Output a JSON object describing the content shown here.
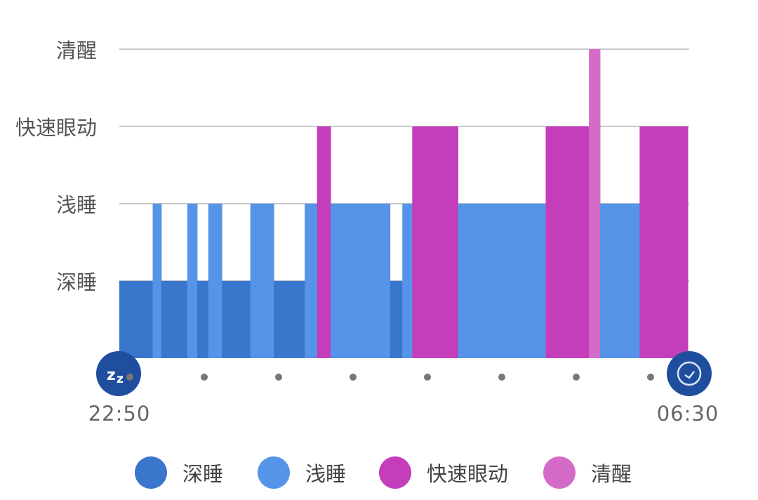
{
  "chart_data": {
    "type": "bar",
    "subtype": "sleep-stage-timeline",
    "x_start": "22:50",
    "x_end": "06:30",
    "xtick_labels": [
      "22:50",
      "06:30"
    ],
    "y_categories": [
      "深睡",
      "浅睡",
      "快速眼动",
      "清醒"
    ],
    "grid": true,
    "legend_position": "bottom",
    "colors": {
      "深睡": "#3a76cb",
      "浅睡": "#5594e8",
      "快速眼动": "#c43dbb",
      "清醒": "#d56bc9"
    },
    "segments": [
      {
        "start": "22:50",
        "end": "23:17",
        "stage": "深睡"
      },
      {
        "start": "23:17",
        "end": "23:24",
        "stage": "浅睡"
      },
      {
        "start": "23:24",
        "end": "23:45",
        "stage": "深睡"
      },
      {
        "start": "23:45",
        "end": "23:53",
        "stage": "浅睡"
      },
      {
        "start": "23:53",
        "end": "00:02",
        "stage": "深睡"
      },
      {
        "start": "00:02",
        "end": "00:13",
        "stage": "浅睡"
      },
      {
        "start": "00:13",
        "end": "00:36",
        "stage": "深睡"
      },
      {
        "start": "00:36",
        "end": "00:55",
        "stage": "浅睡"
      },
      {
        "start": "00:55",
        "end": "01:20",
        "stage": "深睡"
      },
      {
        "start": "01:20",
        "end": "01:30",
        "stage": "浅睡"
      },
      {
        "start": "01:30",
        "end": "01:41",
        "stage": "快速眼动"
      },
      {
        "start": "01:41",
        "end": "02:29",
        "stage": "浅睡"
      },
      {
        "start": "02:29",
        "end": "02:39",
        "stage": "深睡"
      },
      {
        "start": "02:39",
        "end": "02:47",
        "stage": "浅睡"
      },
      {
        "start": "02:47",
        "end": "03:24",
        "stage": "快速眼动"
      },
      {
        "start": "03:24",
        "end": "04:35",
        "stage": "浅睡"
      },
      {
        "start": "04:35",
        "end": "05:10",
        "stage": "快速眼动"
      },
      {
        "start": "05:10",
        "end": "05:19",
        "stage": "清醒"
      },
      {
        "start": "05:19",
        "end": "05:51",
        "stage": "浅睡"
      },
      {
        "start": "05:51",
        "end": "06:30",
        "stage": "快速眼动"
      }
    ],
    "legend": [
      "深睡",
      "浅睡",
      "快速眼动",
      "清醒"
    ],
    "icons": {
      "start": "sleep-zz-icon",
      "end": "alarm-clock-icon"
    }
  }
}
